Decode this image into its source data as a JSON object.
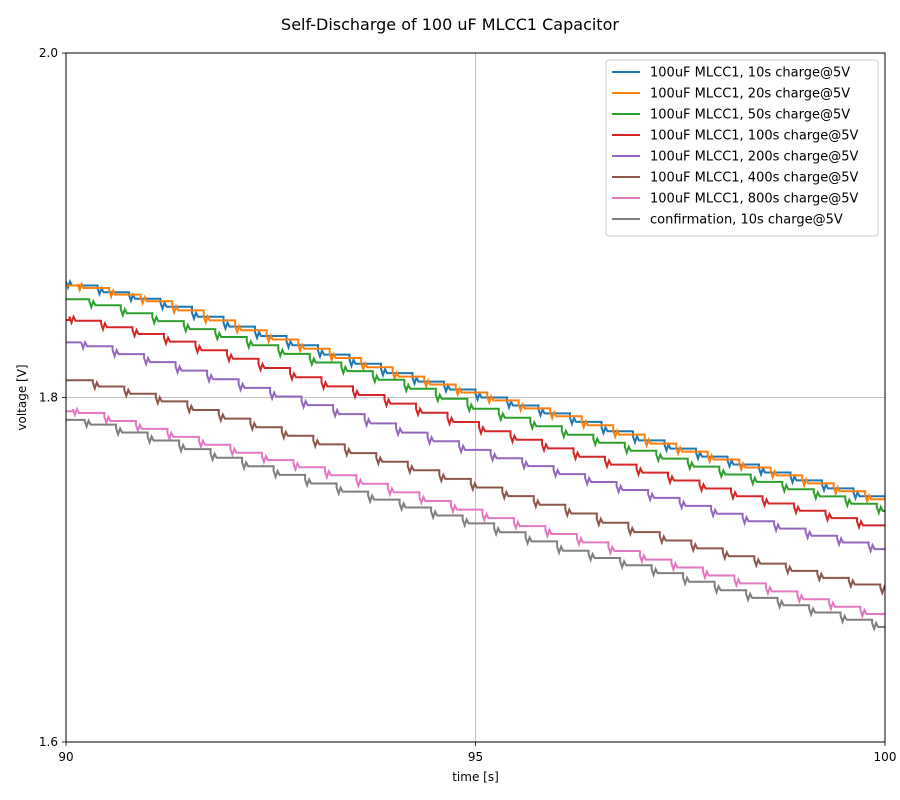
{
  "chart_data": {
    "type": "line",
    "title": "Self-Discharge of 100 uF MLCC1 Capacitor",
    "xlabel": "time [s]",
    "ylabel": "voltage [V]",
    "xlim": [
      90,
      100
    ],
    "ylim": [
      1.6,
      2.0
    ],
    "xticks": [
      90,
      95,
      100
    ],
    "xtick_labels": [
      "90",
      "95",
      "100"
    ],
    "yticks": [
      1.6,
      1.8,
      2.0
    ],
    "ytick_labels": [
      "1.6",
      "1.8",
      "2.0"
    ],
    "grid": true,
    "legend_position": "top-right",
    "step_style": "staircase",
    "series": [
      {
        "name": "100uF MLCC1,  10s charge@5V",
        "color": "#1f77b4",
        "x": [
          90,
          91,
          92,
          93,
          94,
          95,
          96,
          97,
          98,
          99,
          100
        ],
        "y": [
          1.865,
          1.855,
          1.84,
          1.826,
          1.812,
          1.8,
          1.788,
          1.774,
          1.762,
          1.75,
          1.738
        ]
      },
      {
        "name": "100uF MLCC1,  20s charge@5V",
        "color": "#ff7f0e",
        "x": [
          90,
          91,
          92,
          93,
          94,
          95,
          96,
          97,
          98,
          99,
          100
        ],
        "y": [
          1.865,
          1.855,
          1.84,
          1.826,
          1.812,
          1.8,
          1.788,
          1.774,
          1.762,
          1.75,
          1.738
        ]
      },
      {
        "name": "100uF MLCC1,  50s charge@5V",
        "color": "#2ca02c",
        "x": [
          90,
          91,
          92,
          93,
          94,
          95,
          96,
          97,
          98,
          99,
          100
        ],
        "y": [
          1.857,
          1.845,
          1.833,
          1.82,
          1.807,
          1.792,
          1.779,
          1.767,
          1.755,
          1.744,
          1.733
        ]
      },
      {
        "name": "100uF MLCC1, 100s charge@5V",
        "color": "#d62728",
        "x": [
          90,
          91,
          92,
          93,
          94,
          95,
          96,
          97,
          98,
          99,
          100
        ],
        "y": [
          1.845,
          1.835,
          1.822,
          1.808,
          1.795,
          1.781,
          1.768,
          1.756,
          1.744,
          1.733,
          1.722
        ]
      },
      {
        "name": "100uF MLCC1, 200s charge@5V",
        "color": "#9467bd",
        "x": [
          90,
          91,
          92,
          93,
          94,
          95,
          96,
          97,
          98,
          99,
          100
        ],
        "y": [
          1.832,
          1.82,
          1.807,
          1.794,
          1.78,
          1.767,
          1.755,
          1.743,
          1.731,
          1.72,
          1.71
        ]
      },
      {
        "name": "100uF MLCC1, 400s charge@5V",
        "color": "#8c564b",
        "x": [
          90,
          91,
          92,
          93,
          94,
          95,
          96,
          97,
          98,
          99,
          100
        ],
        "y": [
          1.81,
          1.799,
          1.786,
          1.773,
          1.76,
          1.747,
          1.734,
          1.72,
          1.708,
          1.697,
          1.687
        ]
      },
      {
        "name": "100uF MLCC1, 800s charge@5V",
        "color": "#e377c2",
        "x": [
          90,
          91,
          92,
          93,
          94,
          95,
          96,
          97,
          98,
          99,
          100
        ],
        "y": [
          1.792,
          1.78,
          1.768,
          1.757,
          1.744,
          1.731,
          1.719,
          1.706,
          1.694,
          1.682,
          1.671
        ]
      },
      {
        "name": "confirmation,  10s charge@5V",
        "color": "#7f7f7f",
        "x": [
          90,
          91,
          92,
          93,
          94,
          95,
          96,
          97,
          98,
          99,
          100
        ],
        "y": [
          1.787,
          1.775,
          1.762,
          1.749,
          1.737,
          1.725,
          1.711,
          1.7,
          1.687,
          1.676,
          1.665
        ]
      }
    ]
  }
}
